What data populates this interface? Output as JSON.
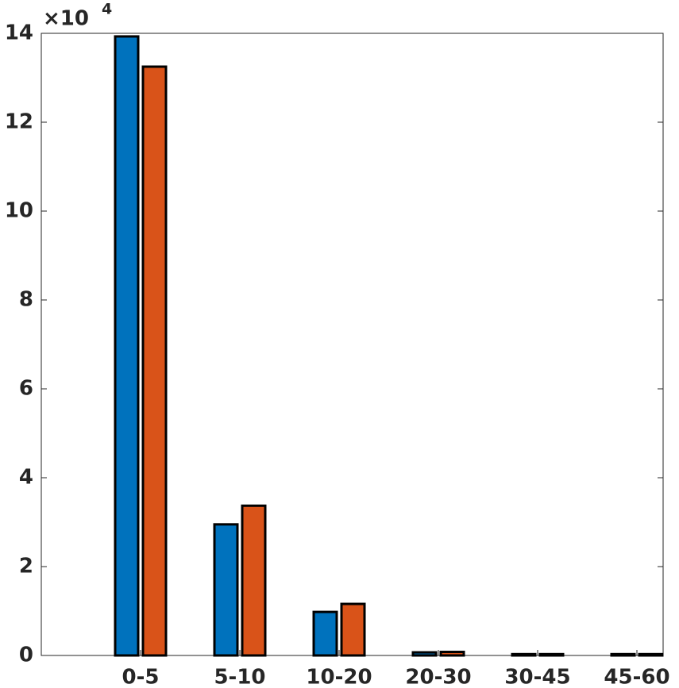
{
  "chart_data": {
    "type": "bar",
    "categories": [
      "0-5",
      "5-10",
      "10-20",
      "20-30",
      "30-45",
      "45-60"
    ],
    "series": [
      {
        "color": "#0072BD",
        "values": [
          13.93,
          2.95,
          0.98,
          0.07,
          0.03,
          0.03
        ]
      },
      {
        "color": "#D95319",
        "values": [
          13.25,
          3.37,
          1.16,
          0.08,
          0.03,
          0.03
        ]
      }
    ],
    "ylim": [
      0,
      14
    ],
    "yticks": [
      0,
      2,
      4,
      6,
      8,
      10,
      12,
      14
    ],
    "y_multiplier": {
      "base": "×10",
      "exponent": "4"
    },
    "grid": false
  }
}
